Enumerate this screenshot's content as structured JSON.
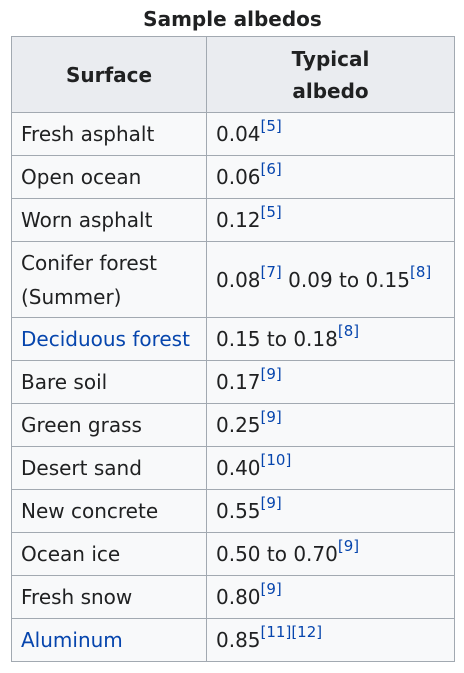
{
  "caption": "Sample albedos",
  "headers": {
    "surface": "Surface",
    "albedo_line1": "Typical",
    "albedo_line2": "albedo"
  },
  "rows": [
    {
      "surface": "Fresh asphalt",
      "value": "0.04",
      "refs": "[5]",
      "value2": "",
      "refs2": ""
    },
    {
      "surface": "Open ocean",
      "value": "0.06",
      "refs": "[6]",
      "value2": "",
      "refs2": ""
    },
    {
      "surface": "Worn asphalt",
      "value": "0.12",
      "refs": "[5]",
      "value2": "",
      "refs2": ""
    },
    {
      "surface_line1": "Conifer forest",
      "surface_line2": "(Summer)",
      "value": "0.08",
      "refs": "[7]",
      "value2": " 0.09 to 0.15",
      "refs2": "[8]"
    },
    {
      "surface": "Deciduous forest",
      "value": "0.15 to 0.18",
      "refs": "[8]",
      "value2": "",
      "refs2": ""
    },
    {
      "surface": "Bare soil",
      "value": "0.17",
      "refs": "[9]",
      "value2": "",
      "refs2": ""
    },
    {
      "surface": "Green grass",
      "value": "0.25",
      "refs": "[9]",
      "value2": "",
      "refs2": ""
    },
    {
      "surface": "Desert sand",
      "value": "0.40",
      "refs": "[10]",
      "value2": "",
      "refs2": ""
    },
    {
      "surface": "New concrete",
      "value": "0.55",
      "refs": "[9]",
      "value2": "",
      "refs2": ""
    },
    {
      "surface": "Ocean ice",
      "value": "0.50 to 0.70",
      "refs": "[9]",
      "value2": "",
      "refs2": ""
    },
    {
      "surface": "Fresh snow",
      "value": "0.80",
      "refs": "[9]",
      "value2": "",
      "refs2": ""
    },
    {
      "surface": "Aluminum",
      "value": "0.85",
      "refs": "[11][12]",
      "value2": "",
      "refs2": ""
    }
  ],
  "colors": {
    "link": "#0645ad",
    "header_bg": "#eaecf0",
    "cell_bg": "#f8f9fa",
    "border": "#a2a9b1"
  }
}
